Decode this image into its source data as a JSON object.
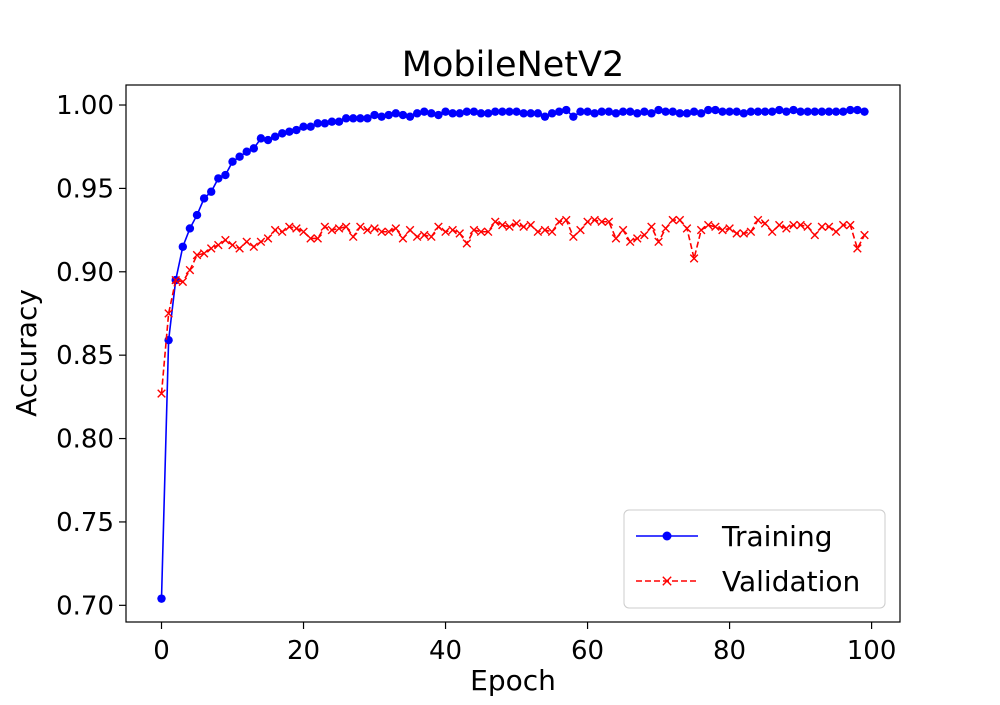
{
  "chart_data": {
    "type": "line",
    "title": "MobileNetV2",
    "xlabel": "Epoch",
    "ylabel": "Accuracy",
    "xlim": [
      -5,
      104
    ],
    "ylim": [
      0.69,
      1.012
    ],
    "xticks": [
      0,
      20,
      40,
      60,
      80,
      100
    ],
    "yticks": [
      0.7,
      0.75,
      0.8,
      0.85,
      0.9,
      0.95,
      1.0
    ],
    "xtick_labels": [
      "0",
      "20",
      "40",
      "60",
      "80",
      "100"
    ],
    "ytick_labels": [
      "0.70",
      "0.75",
      "0.80",
      "0.85",
      "0.90",
      "0.95",
      "1.00"
    ],
    "grid": false,
    "legend_position": "lower-right",
    "x": [
      0,
      1,
      2,
      3,
      4,
      5,
      6,
      7,
      8,
      9,
      10,
      11,
      12,
      13,
      14,
      15,
      16,
      17,
      18,
      19,
      20,
      21,
      22,
      23,
      24,
      25,
      26,
      27,
      28,
      29,
      30,
      31,
      32,
      33,
      34,
      35,
      36,
      37,
      38,
      39,
      40,
      41,
      42,
      43,
      44,
      45,
      46,
      47,
      48,
      49,
      50,
      51,
      52,
      53,
      54,
      55,
      56,
      57,
      58,
      59,
      60,
      61,
      62,
      63,
      64,
      65,
      66,
      67,
      68,
      69,
      70,
      71,
      72,
      73,
      74,
      75,
      76,
      77,
      78,
      79,
      80,
      81,
      82,
      83,
      84,
      85,
      86,
      87,
      88,
      89,
      90,
      91,
      92,
      93,
      94,
      95,
      96,
      97,
      98,
      99
    ],
    "series": [
      {
        "name": "Training",
        "color": "#0000ff",
        "line_style": "solid",
        "marker": "circle",
        "values": [
          0.704,
          0.859,
          0.895,
          0.915,
          0.926,
          0.934,
          0.944,
          0.948,
          0.956,
          0.958,
          0.966,
          0.969,
          0.972,
          0.974,
          0.98,
          0.979,
          0.981,
          0.983,
          0.984,
          0.985,
          0.987,
          0.987,
          0.989,
          0.989,
          0.99,
          0.99,
          0.992,
          0.992,
          0.992,
          0.992,
          0.994,
          0.993,
          0.994,
          0.995,
          0.994,
          0.993,
          0.995,
          0.996,
          0.995,
          0.994,
          0.996,
          0.995,
          0.995,
          0.996,
          0.996,
          0.995,
          0.995,
          0.996,
          0.996,
          0.996,
          0.996,
          0.995,
          0.995,
          0.995,
          0.993,
          0.995,
          0.996,
          0.997,
          0.993,
          0.996,
          0.996,
          0.995,
          0.996,
          0.996,
          0.995,
          0.996,
          0.996,
          0.995,
          0.996,
          0.995,
          0.997,
          0.996,
          0.996,
          0.995,
          0.995,
          0.996,
          0.995,
          0.997,
          0.997,
          0.996,
          0.996,
          0.996,
          0.995,
          0.996,
          0.996,
          0.996,
          0.996,
          0.997,
          0.996,
          0.997,
          0.996,
          0.996,
          0.996,
          0.996,
          0.996,
          0.996,
          0.996,
          0.997,
          0.997,
          0.996
        ]
      },
      {
        "name": "Validation",
        "color": "#ff0000",
        "line_style": "dashed",
        "marker": "x",
        "values": [
          0.827,
          0.875,
          0.895,
          0.894,
          0.901,
          0.91,
          0.911,
          0.914,
          0.916,
          0.919,
          0.916,
          0.914,
          0.918,
          0.915,
          0.918,
          0.92,
          0.925,
          0.924,
          0.927,
          0.926,
          0.924,
          0.92,
          0.92,
          0.927,
          0.925,
          0.926,
          0.927,
          0.921,
          0.927,
          0.925,
          0.926,
          0.924,
          0.924,
          0.926,
          0.92,
          0.925,
          0.921,
          0.922,
          0.921,
          0.927,
          0.924,
          0.925,
          0.923,
          0.917,
          0.925,
          0.924,
          0.924,
          0.93,
          0.928,
          0.927,
          0.929,
          0.927,
          0.928,
          0.924,
          0.925,
          0.924,
          0.93,
          0.931,
          0.921,
          0.925,
          0.93,
          0.931,
          0.93,
          0.93,
          0.92,
          0.925,
          0.918,
          0.92,
          0.922,
          0.927,
          0.918,
          0.926,
          0.931,
          0.931,
          0.926,
          0.908,
          0.925,
          0.928,
          0.927,
          0.925,
          0.926,
          0.923,
          0.923,
          0.924,
          0.931,
          0.929,
          0.924,
          0.928,
          0.926,
          0.928,
          0.928,
          0.927,
          0.922,
          0.927,
          0.927,
          0.924,
          0.928,
          0.928,
          0.914,
          0.922
        ]
      }
    ]
  }
}
